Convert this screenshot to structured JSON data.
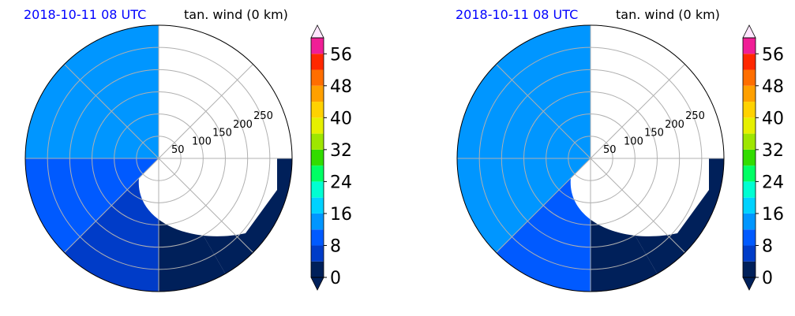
{
  "chart_data": [
    {
      "type": "heatmap",
      "projection": "polar",
      "title_left": "2018-10-11 08 UTC",
      "title_right": "tan. wind (0 km)",
      "radial_ticks": [
        "50",
        "100",
        "150",
        "200",
        "250"
      ],
      "radial_values": [
        50,
        100,
        150,
        200,
        250
      ],
      "rmax": 300,
      "grid": true,
      "colorbar": {
        "levels": [
          0,
          4,
          8,
          12,
          16,
          20,
          24,
          28,
          32,
          36,
          40,
          44,
          48,
          52,
          56,
          60
        ],
        "tick_labels": [
          "0",
          "8",
          "16",
          "24",
          "32",
          "40",
          "48",
          "56"
        ],
        "tick_values": [
          0,
          8,
          16,
          24,
          32,
          40,
          48,
          56
        ],
        "extend": "both"
      },
      "field_sectors": [
        {
          "from_deg": 90,
          "to_deg": 180,
          "value": 12
        },
        {
          "from_deg": 180,
          "to_deg": 225,
          "value": 10
        },
        {
          "from_deg": 225,
          "to_deg": 270,
          "value": 6
        },
        {
          "from_deg": 270,
          "to_deg": 300,
          "value": 3
        },
        {
          "from_deg": 300,
          "to_deg": 360,
          "value": 1
        }
      ]
    },
    {
      "type": "heatmap",
      "projection": "polar",
      "title_left": "2018-10-11 08 UTC",
      "title_right": "tan. wind (0 km)",
      "radial_ticks": [
        "50",
        "100",
        "150",
        "200",
        "250"
      ],
      "radial_values": [
        50,
        100,
        150,
        200,
        250
      ],
      "rmax": 300,
      "grid": true,
      "colorbar": {
        "levels": [
          0,
          4,
          8,
          12,
          16,
          20,
          24,
          28,
          32,
          36,
          40,
          44,
          48,
          52,
          56,
          60
        ],
        "tick_labels": [
          "0",
          "8",
          "16",
          "24",
          "32",
          "40",
          "48",
          "56"
        ],
        "tick_values": [
          0,
          8,
          16,
          24,
          32,
          40,
          48,
          56
        ],
        "extend": "both"
      },
      "field_sectors": [
        {
          "from_deg": 90,
          "to_deg": 135,
          "value": 15
        },
        {
          "from_deg": 135,
          "to_deg": 180,
          "value": 13
        },
        {
          "from_deg": 180,
          "to_deg": 225,
          "value": 12
        },
        {
          "from_deg": 225,
          "to_deg": 270,
          "value": 8
        },
        {
          "from_deg": 270,
          "to_deg": 300,
          "value": 3
        },
        {
          "from_deg": 300,
          "to_deg": 360,
          "value": 1
        }
      ]
    }
  ],
  "colors": {
    "colorbar_bins": [
      "#00205a",
      "#003cc8",
      "#005aff",
      "#0096ff",
      "#00d2ff",
      "#00ffd2",
      "#00ff64",
      "#32dc00",
      "#9ee600",
      "#e6f000",
      "#ffd200",
      "#ffa000",
      "#ff6e00",
      "#ff2800",
      "#f01e96",
      "#b432ff"
    ],
    "under": "#00205a",
    "over": "#ffe6ff",
    "calm_fill": "#ffffff",
    "grid": "#b0b0b0",
    "title_date": "#0000ff"
  }
}
